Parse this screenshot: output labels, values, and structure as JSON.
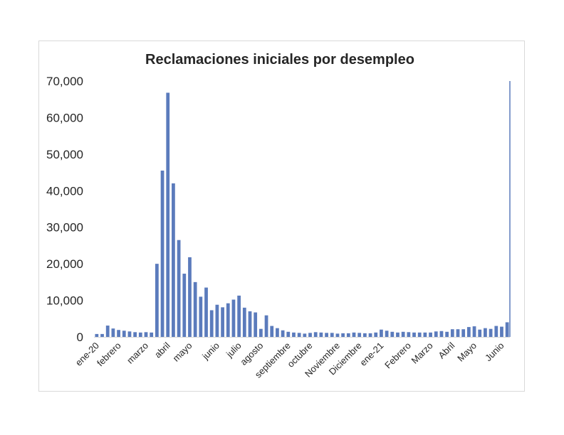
{
  "chart_data": {
    "type": "bar",
    "title": "Reclamaciones iniciales por desempleo",
    "xlabel": "",
    "ylabel": "",
    "ylim": [
      0,
      70000
    ],
    "yticks": [
      "0",
      "10,000",
      "20,000",
      "30,000",
      "40,000",
      "50,000",
      "60,000",
      "70,000"
    ],
    "ytick_values": [
      0,
      10000,
      20000,
      30000,
      40000,
      50000,
      60000,
      70000
    ],
    "grid": false,
    "legend": "none",
    "bar_color": "#5b7bbc",
    "x_tick_labels": [
      {
        "label": "ene-20",
        "index": 0
      },
      {
        "label": "febrero",
        "index": 4
      },
      {
        "label": "marzo",
        "index": 9
      },
      {
        "label": "abril",
        "index": 13
      },
      {
        "label": "mayo",
        "index": 17
      },
      {
        "label": "junio",
        "index": 22
      },
      {
        "label": "julio",
        "index": 26
      },
      {
        "label": "agosto",
        "index": 30
      },
      {
        "label": "septiembre",
        "index": 35
      },
      {
        "label": "octubre",
        "index": 39
      },
      {
        "label": "Noviembre",
        "index": 44
      },
      {
        "label": "Diciembre",
        "index": 48
      },
      {
        "label": "ene-21",
        "index": 52
      },
      {
        "label": "Febrero",
        "index": 57
      },
      {
        "label": "Marzo",
        "index": 61
      },
      {
        "label": "Abril",
        "index": 65
      },
      {
        "label": "Mayo",
        "index": 69
      },
      {
        "label": "Junio",
        "index": 74
      }
    ],
    "values": [
      800,
      800,
      3100,
      2300,
      1900,
      1700,
      1500,
      1300,
      1200,
      1300,
      1200,
      20000,
      45500,
      66800,
      42000,
      26500,
      17300,
      21800,
      15000,
      11000,
      13500,
      7300,
      8800,
      8100,
      9200,
      10200,
      11300,
      8000,
      7000,
      6700,
      2200,
      5900,
      3000,
      2400,
      1800,
      1400,
      1200,
      1100,
      900,
      1100,
      1300,
      1200,
      1100,
      1100,
      900,
      1000,
      1000,
      1200,
      1100,
      1000,
      1000,
      1200,
      2000,
      1700,
      1400,
      1200,
      1400,
      1300,
      1200,
      1200,
      1200,
      1200,
      1500,
      1600,
      1400,
      2100,
      2100,
      2100,
      2700,
      2900,
      2000,
      2400,
      2200,
      3000,
      2800,
      4000
    ]
  }
}
